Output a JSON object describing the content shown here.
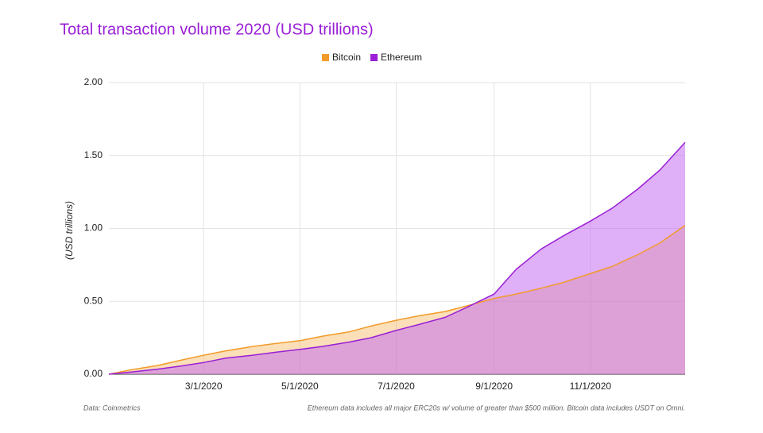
{
  "chart_data": {
    "type": "area",
    "title": "Total transaction volume 2020 (USD trillions)",
    "y_label": "(USD trillions)",
    "source": "Data: Coinmetrics",
    "footnote": "Ethereum data includes all major ERC20s w/ volume of greater than $500 million. Bitcoin data includes USDT on Omni.",
    "legend_position": "top",
    "grid": true,
    "x": [
      "1/1/2020",
      "1/15/2020",
      "2/1/2020",
      "2/15/2020",
      "3/1/2020",
      "3/15/2020",
      "4/1/2020",
      "4/15/2020",
      "5/1/2020",
      "5/15/2020",
      "6/1/2020",
      "6/15/2020",
      "7/1/2020",
      "7/15/2020",
      "8/1/2020",
      "8/15/2020",
      "9/1/2020",
      "9/15/2020",
      "10/1/2020",
      "10/15/2020",
      "11/1/2020",
      "11/15/2020",
      "12/1/2020",
      "12/15/2020",
      "12/31/2020"
    ],
    "xlim": [
      "1/1/2020",
      "12/31/2020"
    ],
    "xticks": [
      "3/1/2020",
      "5/1/2020",
      "7/1/2020",
      "9/1/2020",
      "11/1/2020"
    ],
    "ylim": [
      0,
      2
    ],
    "yticks": [
      {
        "value": 0,
        "label": "0.00"
      },
      {
        "value": 0.5,
        "label": "0.50"
      },
      {
        "value": 1,
        "label": "1.00"
      },
      {
        "value": 1.5,
        "label": "1.50"
      },
      {
        "value": 2,
        "label": "2.00"
      }
    ],
    "series": [
      {
        "name": "Bitcoin",
        "color": "#f29b2a",
        "fill": "rgba(245,170,70,0.38)",
        "values": [
          0,
          0.03,
          0.06,
          0.095,
          0.13,
          0.16,
          0.19,
          0.21,
          0.23,
          0.26,
          0.29,
          0.33,
          0.37,
          0.4,
          0.43,
          0.47,
          0.52,
          0.55,
          0.59,
          0.63,
          0.69,
          0.74,
          0.82,
          0.9,
          1.02
        ]
      },
      {
        "name": "Ethereum",
        "color": "#9a1fd6",
        "fill": "rgba(196,110,240,0.55)",
        "values": [
          0,
          0.015,
          0.035,
          0.055,
          0.08,
          0.11,
          0.13,
          0.15,
          0.17,
          0.19,
          0.22,
          0.25,
          0.3,
          0.34,
          0.39,
          0.46,
          0.55,
          0.72,
          0.86,
          0.95,
          1.05,
          1.14,
          1.27,
          1.4,
          1.59
        ]
      }
    ]
  }
}
